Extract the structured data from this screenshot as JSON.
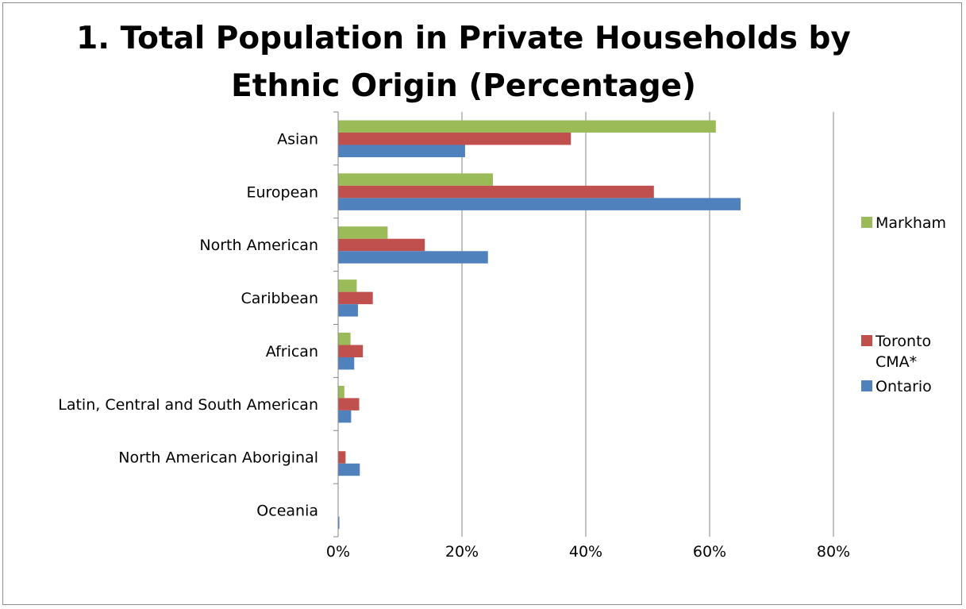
{
  "chart_data": {
    "type": "bar",
    "orientation": "horizontal",
    "title_lines": [
      "1. Total Population in Private Households by",
      "Ethnic Origin (Percentage)"
    ],
    "categories": [
      "Asian",
      "European",
      "North American",
      "Caribbean",
      "African",
      "Latin, Central and South American",
      "North American Aboriginal",
      "Oceania"
    ],
    "series": [
      {
        "name": "Markham",
        "color": "#9bbb59",
        "values": [
          61,
          25,
          8,
          3,
          2,
          1,
          0,
          0
        ]
      },
      {
        "name": "Toronto CMA*",
        "color": "#c0504d",
        "values": [
          37.6,
          51,
          14,
          5.6,
          4,
          3.4,
          1.2,
          0
        ]
      },
      {
        "name": "Ontario",
        "color": "#4f81bd",
        "values": [
          20.5,
          65,
          24.2,
          3.2,
          2.6,
          2.1,
          3.5,
          0.2
        ]
      }
    ],
    "legend_lines": [
      [
        "Markham"
      ],
      [
        "Toronto",
        "CMA*"
      ],
      [
        "Ontario"
      ]
    ],
    "xlim": [
      0,
      80
    ],
    "xticks": [
      0,
      20,
      40,
      60,
      80
    ],
    "xtick_labels": [
      "0%",
      "20%",
      "40%",
      "60%",
      "80%"
    ],
    "grid": "vertical",
    "legend_position": "right"
  }
}
